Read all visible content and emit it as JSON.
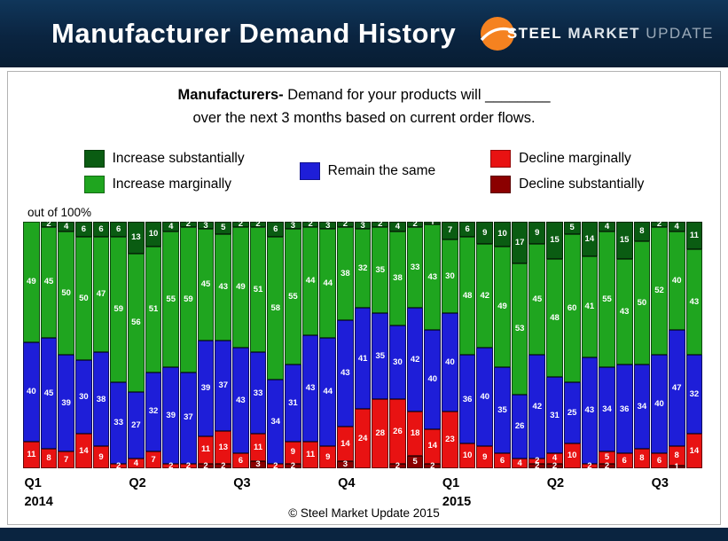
{
  "header": {
    "title": "Manufacturer Demand History",
    "logo": {
      "steel": "STEEL",
      "market": "MARKET",
      "update": "UPDATE",
      "accent_color": "#f58220"
    }
  },
  "subtitle": {
    "bold": "Manufacturers-",
    "rest": " Demand for your products will ________",
    "line2": "over the next 3 months based on current order flows."
  },
  "legend": {
    "col1": [
      {
        "label": "Increase substantially",
        "color": "#0a5c12"
      },
      {
        "label": "Increase marginally",
        "color": "#1fa51f"
      }
    ],
    "col2": [
      {
        "label": "Remain the same",
        "color": "#1e1ed8"
      }
    ],
    "col3": [
      {
        "label": "Decline marginally",
        "color": "#e81212"
      },
      {
        "label": "Decline substantially",
        "color": "#8b0000"
      }
    ]
  },
  "axis_note": "out of 100%",
  "footer": "© Steel Market Update 2015",
  "chart_data": {
    "type": "bar",
    "stacked": true,
    "percent_stacked": true,
    "ylim": [
      0,
      100
    ],
    "grid": false,
    "legend_position": "top",
    "stack_order_top_to_bottom": [
      "Increase substantially",
      "Increase marginally",
      "Remain the same",
      "Decline marginally",
      "Decline substantially"
    ],
    "series": [
      {
        "name": "Increase substantially",
        "color": "#0a5c12",
        "values": [
          0,
          2,
          4,
          6,
          6,
          6,
          13,
          10,
          4,
          2,
          3,
          5,
          2,
          2,
          6,
          3,
          2,
          3,
          2,
          3,
          2,
          4,
          2,
          1,
          7,
          6,
          9,
          10,
          17,
          9,
          15,
          5,
          14,
          4,
          15,
          8,
          2,
          4,
          11
        ]
      },
      {
        "name": "Increase marginally",
        "color": "#1fa51f",
        "values": [
          49,
          45,
          50,
          50,
          47,
          59,
          56,
          51,
          55,
          59,
          45,
          43,
          49,
          51,
          58,
          55,
          44,
          44,
          38,
          32,
          35,
          38,
          33,
          43,
          30,
          48,
          42,
          49,
          53,
          45,
          48,
          60,
          41,
          55,
          43,
          50,
          52,
          40,
          43
        ]
      },
      {
        "name": "Remain the same",
        "color": "#1e1ed8",
        "values": [
          40,
          45,
          39,
          30,
          38,
          33,
          27,
          32,
          39,
          37,
          39,
          37,
          43,
          33,
          34,
          31,
          43,
          44,
          43,
          41,
          35,
          30,
          42,
          40,
          40,
          36,
          40,
          35,
          26,
          42,
          31,
          25,
          43,
          34,
          36,
          34,
          40,
          47,
          32
        ]
      },
      {
        "name": "Decline marginally",
        "color": "#e81212",
        "values": [
          11,
          8,
          7,
          14,
          9,
          2,
          4,
          7,
          2,
          2,
          11,
          13,
          6,
          11,
          2,
          9,
          11,
          9,
          14,
          24,
          28,
          26,
          18,
          14,
          23,
          10,
          9,
          6,
          4,
          2,
          4,
          10,
          2,
          5,
          6,
          8,
          6,
          8,
          14
        ]
      },
      {
        "name": "Decline substantially",
        "color": "#8b0000",
        "values": [
          0,
          0,
          0,
          0,
          0,
          0,
          0,
          0,
          0,
          0,
          2,
          2,
          0,
          3,
          0,
          2,
          0,
          0,
          3,
          0,
          0,
          2,
          5,
          2,
          0,
          0,
          0,
          0,
          0,
          2,
          2,
          0,
          0,
          2,
          0,
          0,
          0,
          1,
          0
        ]
      }
    ],
    "x_groups": [
      {
        "label": "Q1",
        "year": "2014",
        "start": 0
      },
      {
        "label": "Q2",
        "start": 6
      },
      {
        "label": "Q3",
        "start": 12
      },
      {
        "label": "Q4",
        "start": 18
      },
      {
        "label": "Q1",
        "year": "2015",
        "start": 24
      },
      {
        "label": "Q2",
        "start": 30
      },
      {
        "label": "Q3",
        "start": 36
      }
    ]
  }
}
